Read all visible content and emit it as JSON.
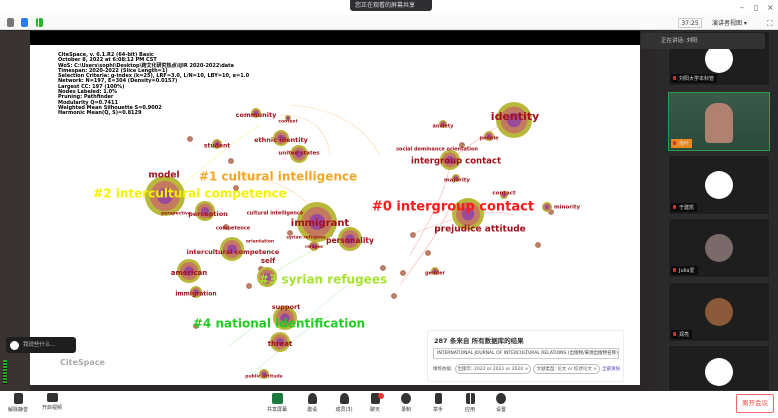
{
  "window": {
    "notice": "您正在观看的屏幕共享",
    "minimize": "–",
    "restore": "▯",
    "close": "×"
  },
  "toolbar": {
    "timer": "37:25",
    "view_mode": "演讲者视图 ▾"
  },
  "citespace": {
    "meta_lines": [
      "CiteSpace, v. 6.1.R2 (64-bit) Basic",
      "October 8, 2022 at 6:08:12 PM CST",
      "WoS: C:\\Users\\sophi\\Desktop\\跨文化研究热点\\IJIR 2020-2022\\data",
      "Timespan: 2020-2022 (Slice Length=1)",
      "Selection Criteria: g-index (k=25), LRF=3.0, L/N=10, LBY=10, e=1.0",
      "Network: N=197, E=304 (Density=0.0157)",
      "Largest CC: 197 (100%)",
      "Nodes Labeled: 1.0%",
      "Pruning: Pathfinder",
      "Modularity Q=0.7411",
      "Weighted Mean Silhouette S=0.9002",
      "Harmonic Mean(Q, S)=0.8129"
    ],
    "clusters": [
      {
        "label": "#0 intergroup contact",
        "color": "#ff1a1a"
      },
      {
        "label": "#1 cultural intelligence",
        "color": "#f5a623"
      },
      {
        "label": "#2 intercultural competence",
        "color": "#f2f200"
      },
      {
        "label": "#3 syrian refugees",
        "color": "#a6e22e"
      },
      {
        "label": "#4 national identification",
        "color": "#22cc22"
      }
    ],
    "keywords": [
      "identity",
      "anxiety",
      "people",
      "social dominance orientation",
      "intergroup contact",
      "majority",
      "contact",
      "minority",
      "prejudice attitude",
      "gender",
      "community",
      "context",
      "ethnic identity",
      "united states",
      "student",
      "model",
      "perspective",
      "perception",
      "cultural intelligence",
      "immigrant",
      "personality",
      "competence",
      "orientation",
      "syrian refugees",
      "refugee",
      "intercultural competence",
      "american",
      "self",
      "immigration",
      "support",
      "threat",
      "public attitude"
    ],
    "logo": "CiteSpace"
  },
  "search_panel": {
    "title": "287 条来自 所有数据库的结果",
    "query": "INTERNATIONAL JOURNAL OF INTERCULTURAL RELATIONS (出版物/来源出版物名称)",
    "filter_label": "精炼依据:",
    "chips": [
      "出版年: 2022 or 2021 or 2020 ×",
      "文献类型: 论文 or 综述论文 ×"
    ],
    "clear_all": "全部清除"
  },
  "chat_bubble": {
    "text": "我说些什么..."
  },
  "participants": {
    "speaking": "正在讲话: 刘阳",
    "tiles": [
      {
        "name": "刘阳大学本科管"
      },
      {
        "name": "俞叶"
      },
      {
        "name": "于建凯"
      },
      {
        "name": "Julia爱"
      },
      {
        "name": "郑亮"
      },
      {
        "name": ""
      }
    ]
  },
  "bottom": {
    "mute": "解除静音",
    "video": "开启视频",
    "share": "共享屏幕",
    "invite": "邀请",
    "members": "成员(3)",
    "chat": "聊天",
    "record": "录制",
    "raise_hand": "举手",
    "apps": "应用",
    "settings": "设置",
    "leave": "离开会议"
  }
}
